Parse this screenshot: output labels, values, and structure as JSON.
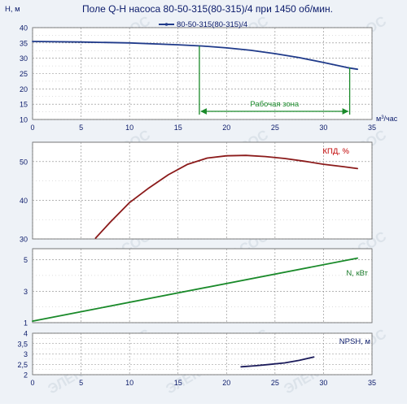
{
  "colors": {
    "head": "#1f3a8a",
    "efficiency": "#8b1a1a",
    "power": "#1a8a2a",
    "npsh": "#1a1a5a",
    "zone": "#1a8a2a",
    "grid": "#888888",
    "panel_bg": "#ffffff",
    "outer_bg": "#eef2f7",
    "label_eff": "#c00000",
    "label_power": "#1a7a2a",
    "label_npsh": "#0a1a6a",
    "text": "#0a1a6a",
    "watermark": "#dce3ea"
  },
  "watermark_text": "ЭЛЕКТРОНАСОС",
  "chart_data": [
    {
      "type": "line",
      "title": "Поле Q-H насоса 80-50-315(80-315)/4 при 1450 об/мин.",
      "ylabel": "H, м",
      "xlabel": "м³/час",
      "xlim": [
        0,
        35
      ],
      "ylim": [
        10,
        40
      ],
      "xticks": [
        0,
        5,
        10,
        15,
        20,
        25,
        30,
        35
      ],
      "yticks": [
        10,
        15,
        20,
        25,
        30,
        35,
        40
      ],
      "legend": "top-right",
      "series": [
        {
          "name": "80-50-315(80-315)/4",
          "x": [
            0,
            5,
            10,
            15,
            17.5,
            20,
            22.5,
            25,
            27.5,
            30,
            32.5,
            33.5
          ],
          "y": [
            35.5,
            35.3,
            35.0,
            34.4,
            34.0,
            33.4,
            32.6,
            31.5,
            30.2,
            28.6,
            26.9,
            26.4
          ]
        }
      ],
      "annotation": {
        "text": "Рабочая зона",
        "x_from": 17.2,
        "x_to": 32.7
      }
    },
    {
      "type": "line",
      "label": "КПД, %",
      "xlim": [
        0,
        35
      ],
      "ylim": [
        30,
        55
      ],
      "yticks": [
        30,
        40,
        50
      ],
      "series": [
        {
          "x": [
            6.5,
            8,
            10,
            12,
            14,
            16,
            18,
            20,
            22,
            24,
            26,
            28,
            30,
            32,
            33.5
          ],
          "y": [
            30.2,
            34.3,
            39.4,
            43.2,
            46.6,
            49.3,
            50.9,
            51.5,
            51.6,
            51.3,
            50.8,
            50.1,
            49.3,
            48.7,
            48.2
          ]
        }
      ]
    },
    {
      "type": "line",
      "label": "N, кВт",
      "xlim": [
        0,
        35
      ],
      "ylim": [
        1,
        5.7
      ],
      "yticks": [
        1,
        3,
        5
      ],
      "series": [
        {
          "x": [
            0,
            33.5
          ],
          "y": [
            1.1,
            5.1
          ]
        }
      ]
    },
    {
      "type": "line",
      "label": "NPSH, м",
      "xlabel": "",
      "xlim": [
        0,
        35
      ],
      "ylim": [
        2,
        4
      ],
      "xticks": [
        0,
        5,
        10,
        15,
        20,
        25,
        30,
        35
      ],
      "yticks": [
        2,
        2.5,
        3,
        3.5,
        4
      ],
      "ytick_labels": [
        "2",
        "2,5",
        "3",
        "3,5",
        "4"
      ],
      "series": [
        {
          "x": [
            21.5,
            23,
            24.5,
            26,
            27.5,
            29
          ],
          "y": [
            2.38,
            2.43,
            2.5,
            2.57,
            2.69,
            2.85
          ]
        }
      ]
    }
  ]
}
